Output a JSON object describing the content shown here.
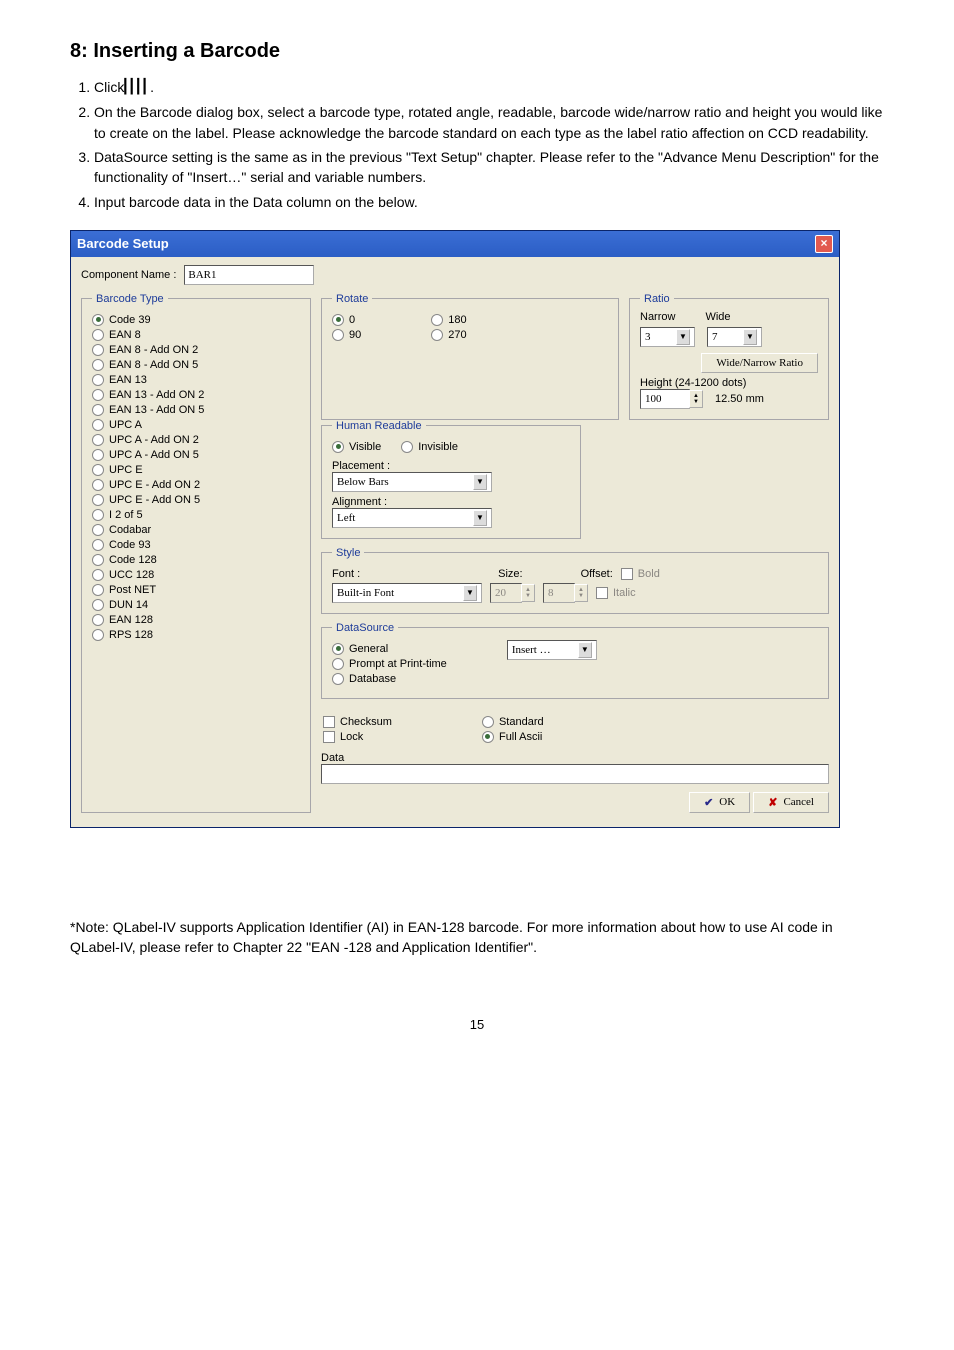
{
  "heading": "8: Inserting a Barcode",
  "instructions": {
    "step1_prefix": "Click",
    "step1_suffix": ".",
    "step2": "On the Barcode dialog box, select a barcode type, rotated angle, readable, barcode wide/narrow ratio and height you would like to create on the label. Please acknowledge the barcode standard on each type as the label ratio affection on CCD readability.",
    "step3": "DataSource setting is the same as in the previous \"Text Setup\" chapter. Please refer to the \"Advance Menu Description\" for the functionality of \"Insert…\" serial and variable numbers.",
    "step4": "Input barcode data in the Data column on the below."
  },
  "footnote": "*Note: QLabel-IV supports Application Identifier (AI) in EAN-128 barcode. For more information about how to use AI code in QLabel-IV, please refer to Chapter 22 \"EAN -128 and Application Identifier\".",
  "page_number": "15",
  "dialog": {
    "title": "Barcode Setup",
    "component_label": "Component Name :",
    "component_value": "BAR1",
    "barcode_type": {
      "legend": "Barcode Type",
      "options": [
        {
          "label": "Code 39",
          "selected": true
        },
        {
          "label": "EAN 8",
          "selected": false
        },
        {
          "label": "EAN 8 - Add ON 2",
          "selected": false
        },
        {
          "label": "EAN 8 - Add ON 5",
          "selected": false
        },
        {
          "label": "EAN 13",
          "selected": false
        },
        {
          "label": "EAN 13 - Add ON 2",
          "selected": false
        },
        {
          "label": "EAN 13 - Add ON 5",
          "selected": false
        },
        {
          "label": "UPC A",
          "selected": false
        },
        {
          "label": "UPC A - Add ON 2",
          "selected": false
        },
        {
          "label": "UPC A - Add ON 5",
          "selected": false
        },
        {
          "label": "UPC E",
          "selected": false
        },
        {
          "label": "UPC E - Add ON 2",
          "selected": false
        },
        {
          "label": "UPC E - Add ON 5",
          "selected": false
        },
        {
          "label": "I 2 of 5",
          "selected": false
        },
        {
          "label": "Codabar",
          "selected": false
        },
        {
          "label": "Code 93",
          "selected": false
        },
        {
          "label": "Code 128",
          "selected": false
        },
        {
          "label": "UCC 128",
          "selected": false
        },
        {
          "label": "Post NET",
          "selected": false
        },
        {
          "label": "DUN 14",
          "selected": false
        },
        {
          "label": "EAN 128",
          "selected": false
        },
        {
          "label": "RPS 128",
          "selected": false
        }
      ]
    },
    "rotate": {
      "legend": "Rotate",
      "r0": "0",
      "r90": "90",
      "r180": "180",
      "r270": "270"
    },
    "human": {
      "legend": "Human Readable",
      "visible": "Visible",
      "invisible": "Invisible",
      "placement_label": "Placement :",
      "placement_value": "Below Bars",
      "alignment_label": "Alignment :",
      "alignment_value": "Left"
    },
    "ratio": {
      "legend": "Ratio",
      "narrow_label": "Narrow",
      "wide_label": "Wide",
      "narrow_value": "3",
      "wide_value": "7",
      "wnr_label": "Wide/Narrow Ratio",
      "height_label": "Height (24-1200 dots)",
      "height_value": "100",
      "mm_label": "12.50 mm"
    },
    "style": {
      "legend": "Style",
      "font_label": "Font :",
      "font_value": "Built-in Font",
      "size_label": "Size:",
      "size_value": "20",
      "offset_label": "Offset:",
      "offset_value": "8",
      "bold": "Bold",
      "italic": "Italic"
    },
    "datasource": {
      "legend": "DataSource",
      "general": "General",
      "prompt": "Prompt at Print-time",
      "database": "Database",
      "insert_label": "Insert …"
    },
    "checksum": "Checksum",
    "lock": "Lock",
    "standard": "Standard",
    "full_ascii": "Full Ascii",
    "data_label": "Data",
    "data_value": "",
    "ok": "OK",
    "cancel": "Cancel"
  }
}
